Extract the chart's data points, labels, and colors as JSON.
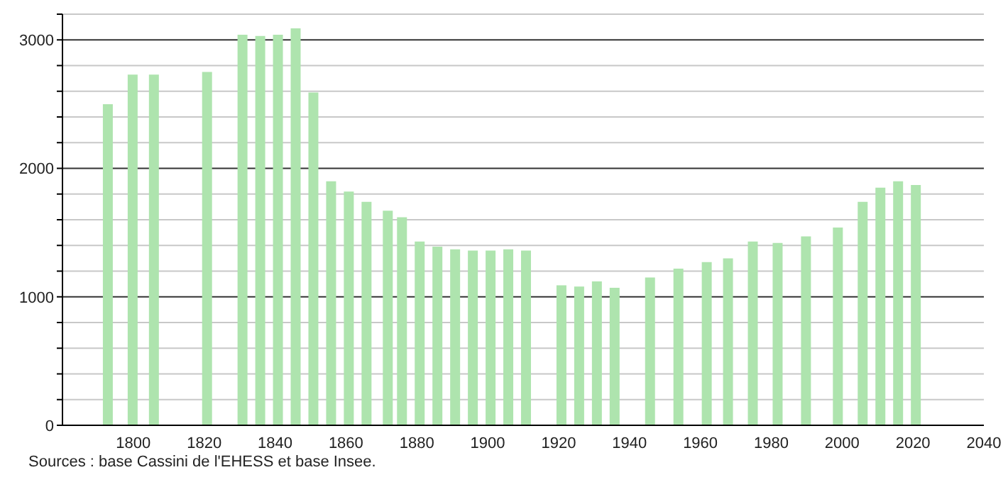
{
  "chart_data": {
    "type": "bar",
    "color": "#aee4ae",
    "x": [
      1793,
      1800,
      1806,
      1821,
      1831,
      1836,
      1841,
      1846,
      1851,
      1856,
      1861,
      1866,
      1872,
      1876,
      1881,
      1886,
      1891,
      1896,
      1901,
      1906,
      1911,
      1921,
      1926,
      1931,
      1936,
      1946,
      1954,
      1962,
      1968,
      1975,
      1982,
      1990,
      1999,
      2006,
      2011,
      2016,
      2021
    ],
    "values": [
      2500,
      2730,
      2730,
      2750,
      3040,
      3030,
      3040,
      3090,
      2590,
      1900,
      1820,
      1740,
      1670,
      1620,
      1430,
      1390,
      1370,
      1360,
      1360,
      1370,
      1360,
      1090,
      1080,
      1120,
      1070,
      1150,
      1220,
      1270,
      1300,
      1430,
      1420,
      1470,
      1540,
      1740,
      1850,
      1900,
      1870
    ],
    "xlim": [
      1780,
      2040
    ],
    "xticks": [
      1800,
      1820,
      1840,
      1860,
      1880,
      1900,
      1920,
      1940,
      1960,
      1980,
      2000,
      2020,
      2040
    ],
    "ylim": [
      0,
      3200
    ],
    "yticks": [
      0,
      {
        "value": 200,
        "label": null
      },
      {
        "value": 400,
        "label": null
      },
      {
        "value": 600,
        "label": null
      },
      {
        "value": 800,
        "label": null
      },
      1000,
      {
        "value": 1200,
        "label": null
      },
      {
        "value": 1400,
        "label": null
      },
      {
        "value": 1600,
        "label": null
      },
      {
        "value": 1800,
        "label": null
      },
      2000,
      {
        "value": 2200,
        "label": null
      },
      {
        "value": 2400,
        "label": null
      },
      {
        "value": 2600,
        "label": null
      },
      {
        "value": 2800,
        "label": null
      },
      3000,
      {
        "value": 3200,
        "label": null
      }
    ],
    "grid": "y",
    "legend": false,
    "annotations": [
      "Sources : base Cassini de l'EHESS et base Insee."
    ]
  }
}
